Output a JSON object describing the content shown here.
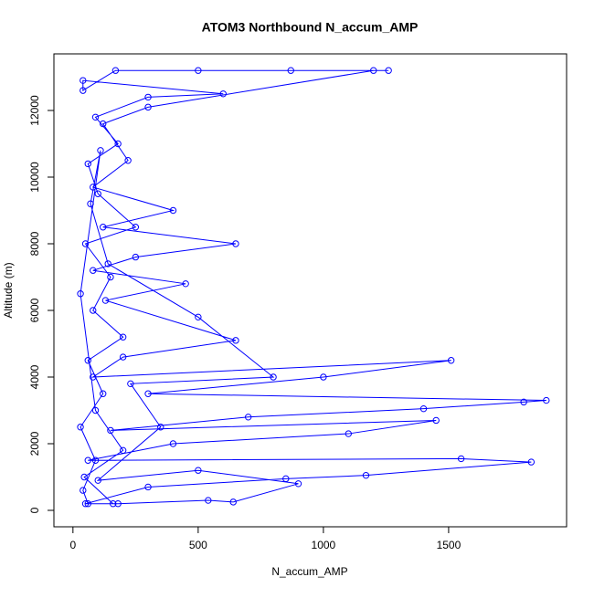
{
  "chart_data": {
    "type": "line",
    "title": "ATOM3 Northbound N_accum_AMP",
    "x_label": "N_accum_AMP",
    "y_label": "Altitude (m)",
    "color": "#0000ff",
    "x": [
      60,
      40,
      90,
      30,
      120,
      60,
      200,
      80,
      150,
      50,
      250,
      100,
      60,
      180,
      90,
      300,
      600,
      40,
      40,
      170,
      500,
      870,
      1260,
      1200,
      300,
      120,
      220,
      80,
      400,
      120,
      650,
      250,
      80,
      450,
      130,
      650,
      200,
      80,
      1510,
      1000,
      300,
      1890,
      1800,
      1400,
      700,
      150,
      1450,
      1100,
      400,
      60,
      1550,
      1830,
      1170,
      850,
      300,
      50,
      180,
      540,
      640,
      900,
      500,
      100,
      350,
      230,
      800,
      500,
      140,
      70,
      110,
      30,
      90,
      200,
      45,
      160
    ],
    "values": [
      200,
      600,
      1500,
      2500,
      3500,
      4500,
      5200,
      6000,
      7000,
      8000,
      8500,
      9500,
      10400,
      11000,
      11800,
      12400,
      12500,
      12900,
      12600,
      13200,
      13200,
      13200,
      13200,
      13200,
      12100,
      11600,
      10500,
      9700,
      9000,
      8500,
      8000,
      7600,
      7200,
      6800,
      6300,
      5100,
      4600,
      4000,
      4500,
      4000,
      3500,
      3300,
      3250,
      3050,
      2800,
      2400,
      2700,
      2300,
      2000,
      1500,
      1550,
      1450,
      1050,
      950,
      700,
      200,
      200,
      300,
      250,
      800,
      1200,
      900,
      2500,
      3800,
      4000,
      5800,
      7400,
      9200,
      10800,
      6500,
      3000,
      1800,
      1000,
      200
    ],
    "xlim": [
      -76,
      1971
    ],
    "ylim": [
      -493,
      13699
    ],
    "xticks": [
      0,
      500,
      1000,
      1500
    ],
    "yticks": [
      0,
      2000,
      4000,
      6000,
      8000,
      10000,
      12000
    ]
  }
}
